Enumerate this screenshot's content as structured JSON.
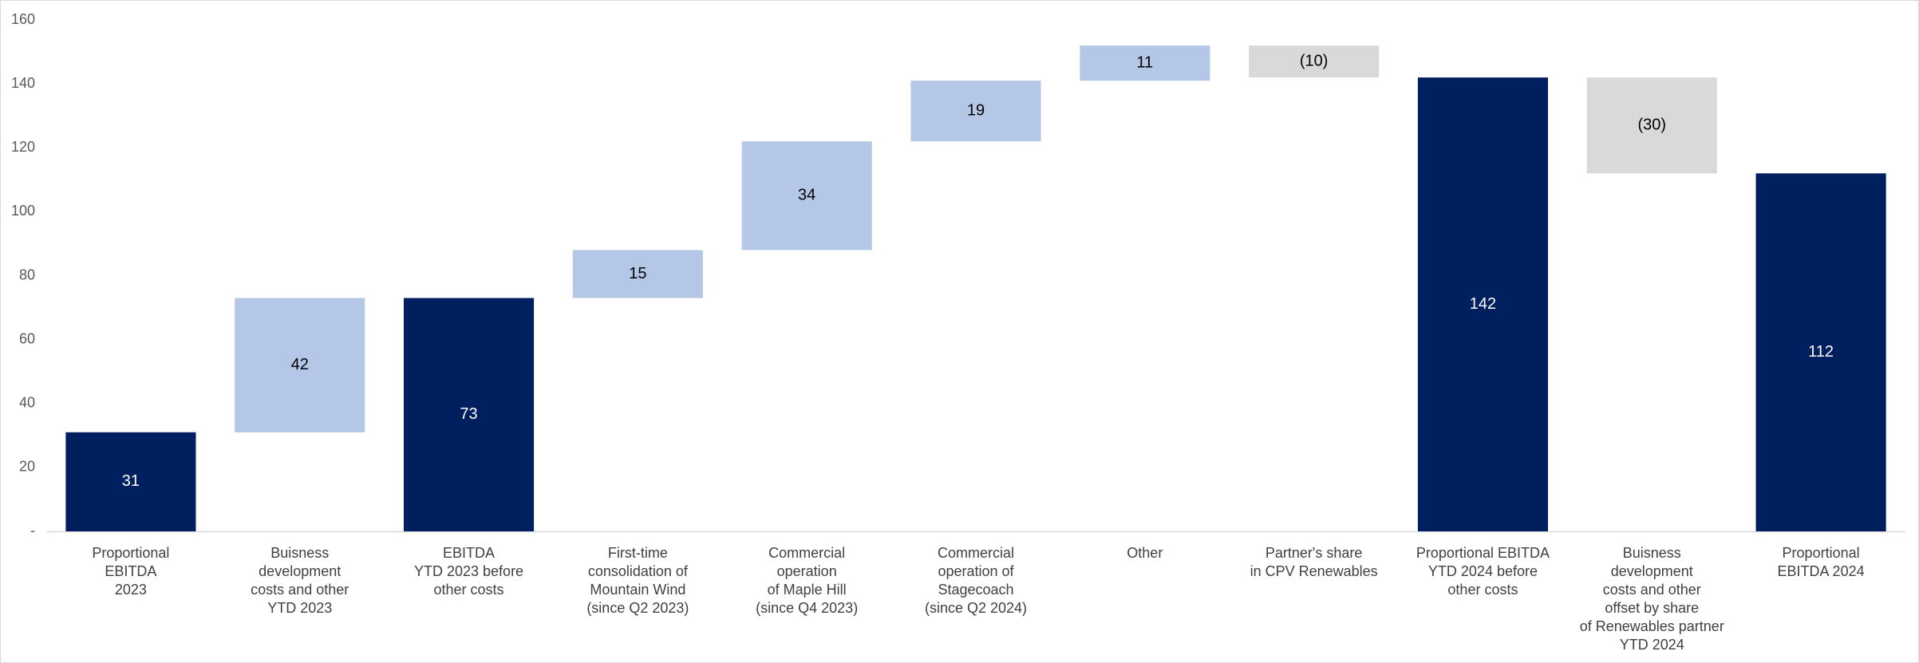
{
  "chart_data": {
    "type": "waterfall",
    "categories": [
      "Proportional\nEBITDA\n2023",
      "Buisness\ndevelopment\ncosts and other\nYTD 2023",
      "EBITDA\nYTD 2023 before\nother costs",
      "First-time\nconsolidation of\nMountain Wind\n(since Q2 2023)",
      "Commercial\noperation\nof Maple Hill\n(since Q4 2023)",
      "Commercial\noperation of\nStagecoach\n(since Q2 2024)",
      "Other",
      "Partner's share\nin CPV Renewables",
      "Proportional EBITDA\nYTD 2024 before\nother costs",
      "Buisness\ndevelopment\ncosts and other\noffset by share\nof Renewables partner\nYTD 2024",
      "Proportional\nEBITDA 2024"
    ],
    "values": [
      31,
      42,
      73,
      15,
      34,
      19,
      11,
      -10,
      142,
      -30,
      112
    ],
    "value_labels": [
      null,
      null,
      null,
      null,
      null,
      null,
      null,
      "(10)",
      null,
      "(30)",
      null
    ],
    "measure": [
      "total",
      "relative",
      "total",
      "relative",
      "relative",
      "relative",
      "relative",
      "relative",
      "total",
      "relative",
      "total"
    ],
    "colors": {
      "total": "#001f5f",
      "increase": "#b4c7e7",
      "decrease": "#d9d9d9"
    },
    "ylim": [
      0,
      160
    ],
    "yticks": [
      {
        "value": 0,
        "label": "-"
      },
      20,
      40,
      60,
      80,
      100,
      120,
      140,
      160
    ],
    "grid": false
  }
}
